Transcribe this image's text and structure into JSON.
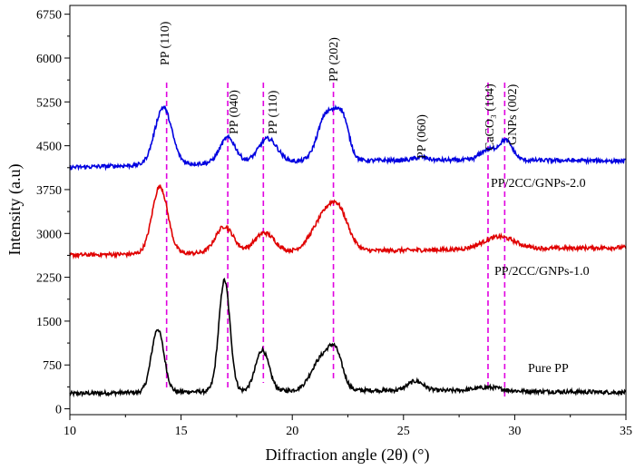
{
  "chart_data": {
    "type": "line",
    "title": "",
    "xlabel": "Diffraction angle (2θ) (°)",
    "ylabel": "Intensity (a.u)",
    "xlim": [
      10,
      35
    ],
    "ylim": [
      -100,
      6900
    ],
    "xticks": [
      "10",
      "15",
      "20",
      "25",
      "30",
      "35"
    ],
    "yticks": [
      "0",
      "750",
      "1500",
      "2250",
      "3000",
      "3750",
      "4500",
      "5250",
      "6000",
      "6750"
    ],
    "series": [
      {
        "name": "Pure PP",
        "color": "#000000",
        "baseline": 320,
        "peaks": [
          {
            "x": 13.95,
            "h": 1080,
            "w": 0.28
          },
          {
            "x": 16.95,
            "h": 1900,
            "w": 0.25
          },
          {
            "x": 18.65,
            "h": 700,
            "w": 0.3
          },
          {
            "x": 21.3,
            "h": 530,
            "w": 0.45
          },
          {
            "x": 21.95,
            "h": 560,
            "w": 0.32
          },
          {
            "x": 25.55,
            "h": 160,
            "w": 0.35
          },
          {
            "x": 28.8,
            "h": 60,
            "w": 0.6
          }
        ],
        "edges": [
          [
            10,
            260
          ],
          [
            35,
            280
          ]
        ]
      },
      {
        "name": "PP/2CC/GNPs-1.0",
        "color": "#e00000",
        "baseline": 2700,
        "peaks": [
          {
            "x": 14.05,
            "h": 1150,
            "w": 0.35
          },
          {
            "x": 16.95,
            "h": 450,
            "w": 0.4
          },
          {
            "x": 18.75,
            "h": 330,
            "w": 0.45
          },
          {
            "x": 21.4,
            "h": 520,
            "w": 0.55
          },
          {
            "x": 22.1,
            "h": 560,
            "w": 0.45
          },
          {
            "x": 29.3,
            "h": 210,
            "w": 0.7
          }
        ],
        "edges": [
          [
            10,
            2630
          ],
          [
            35,
            2760
          ]
        ]
      },
      {
        "name": "PP/2CC/GNPs-2.0",
        "color": "#0000e0",
        "baseline": 4250,
        "peaks": [
          {
            "x": 14.2,
            "h": 980,
            "w": 0.38
          },
          {
            "x": 17.1,
            "h": 430,
            "w": 0.35
          },
          {
            "x": 18.9,
            "h": 400,
            "w": 0.42
          },
          {
            "x": 21.55,
            "h": 800,
            "w": 0.4
          },
          {
            "x": 22.25,
            "h": 680,
            "w": 0.3
          },
          {
            "x": 25.8,
            "h": 50,
            "w": 0.3
          },
          {
            "x": 28.8,
            "h": 180,
            "w": 0.35
          },
          {
            "x": 29.6,
            "h": 330,
            "w": 0.3
          }
        ],
        "edges": [
          [
            10,
            4130
          ],
          [
            35,
            4240
          ]
        ]
      }
    ],
    "series_labels": [
      "PP/2CC/GNPs-2.0",
      "PP/2CC/GNPs-1.0",
      "Pure PP"
    ],
    "peak_markers": [
      {
        "label": "PP (110)",
        "x": 14.35
      },
      {
        "label": "PP (040)",
        "x": 17.1
      },
      {
        "label": "PP (110)",
        "x": 18.7
      },
      {
        "label": "PP (202)",
        "x": 21.85
      },
      {
        "label": "PP (060)",
        "x": 25.8
      },
      {
        "label": "CaCO₃ (104)",
        "x": 28.8
      },
      {
        "label": "GNPs (002)",
        "x": 29.55
      }
    ],
    "marker_color": "#e000e0"
  }
}
